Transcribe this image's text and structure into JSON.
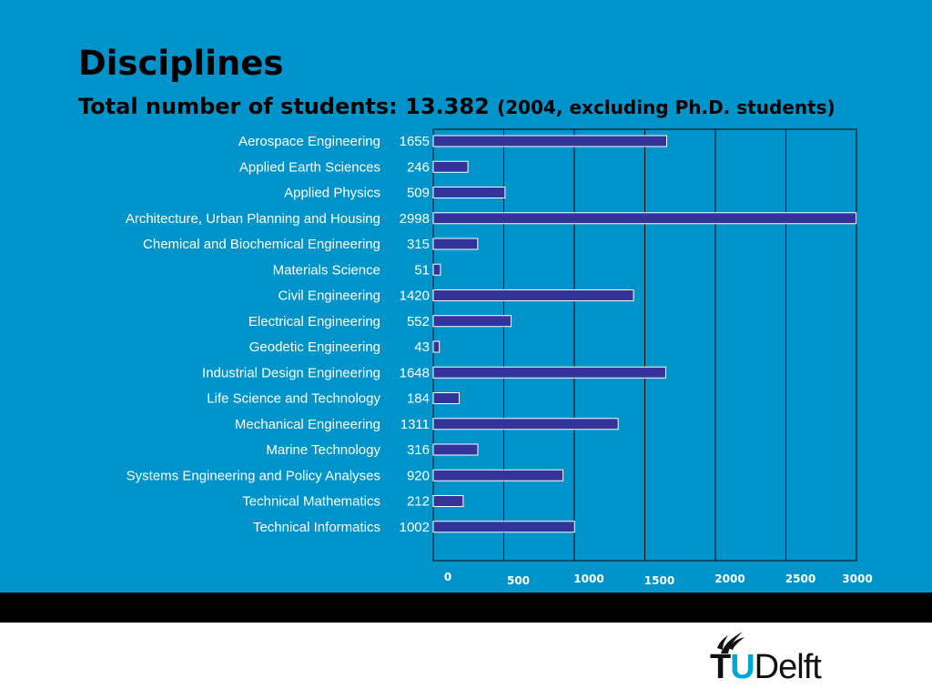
{
  "slide": {
    "title": "Disciplines",
    "subtitle_main": "Total number of students: 13.382",
    "subtitle_note": "(2004, excluding Ph.D. students)"
  },
  "colors": {
    "background": "#0094ca",
    "bar_fill": "#333399",
    "bar_stroke": "#ffffff",
    "gridline": "#000000",
    "band": "#000000",
    "logo_accent": "#00a6d6"
  },
  "chart_data": {
    "type": "bar",
    "orientation": "horizontal",
    "categories": [
      "Aerospace Engineering",
      "Applied Earth Sciences",
      "Applied Physics",
      "Architecture, Urban Planning and Housing",
      "Chemical and Biochemical Engineering",
      "Materials Science",
      "Civil Engineering",
      "Electrical Engineering",
      "Geodetic Engineering",
      "Industrial Design Engineering",
      "Life Science and Technology",
      "Mechanical Engineering",
      "Marine Technology",
      "Systems Engineering and Policy Analyses",
      "Technical Mathematics",
      "Technical Informatics"
    ],
    "values": [
      1655,
      246,
      509,
      2998,
      315,
      51,
      1420,
      552,
      43,
      1648,
      184,
      1311,
      316,
      920,
      212,
      1002
    ],
    "value_labels": [
      "1655",
      "246",
      "509",
      "2998",
      "315",
      "51",
      "1420",
      "552",
      "43",
      "1648",
      "184",
      "1311",
      "316",
      "920",
      "212",
      "1002"
    ],
    "xticks": [
      0,
      500,
      1000,
      1500,
      2000,
      2500,
      3000
    ],
    "xtick_labels": [
      "0",
      "500",
      "1000",
      "1500",
      "2000",
      "2500",
      "3000"
    ],
    "xlim": [
      0,
      3000
    ],
    "grid": "vertical",
    "legend": "none"
  },
  "logo": {
    "tu_t": "T",
    "tu_u": "U",
    "delft": "Delft"
  }
}
